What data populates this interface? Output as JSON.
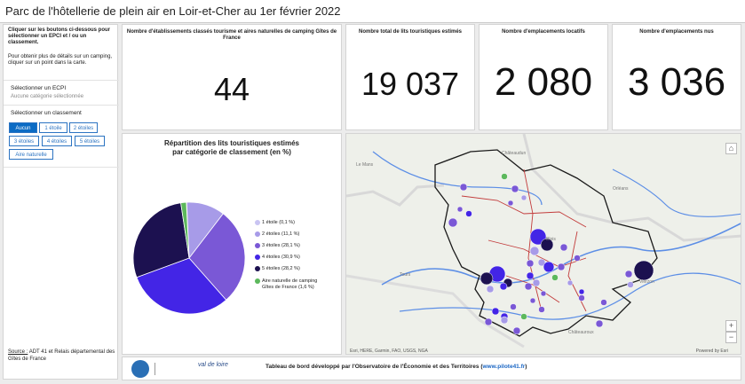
{
  "header": {
    "title": "Parc de l'hôtellerie de plein air en Loir-et-Cher au 1er février 2022"
  },
  "sidebar": {
    "instructions_bold": "Cliquer sur les boutons ci-dessous pour sélectionner un EPCI et / ou un classement.",
    "instructions": "Pour obtenir plus de détails sur un camping, cliquer sur un point dans la carte.",
    "epci_label": "Sélectionner un ECPI",
    "epci_value": "Aucune catégorie sélectionnée",
    "classement_label": "Sélectionner un classement",
    "buttons": [
      "Aucun",
      "1 étoile",
      "2 étoiles",
      "3 étoiles",
      "4 étoiles",
      "5 étoiles",
      "Aire naturelle"
    ],
    "source_label": "Source :",
    "source_text": " ADT 41 et Relais départemental des Gîtes de France"
  },
  "kpis": [
    {
      "title": "Nombre d'établissements classés tourisme et aires naturelles de camping Gîtes de France",
      "value": "44"
    },
    {
      "title": "Nombre total de lits touristiques estimés",
      "value": "19 037"
    },
    {
      "title": "Nombre d'emplacements locatifs",
      "value": "2 080"
    },
    {
      "title": "Nombre d'emplacements nus",
      "value": "3 036"
    }
  ],
  "chart_data": {
    "type": "pie",
    "title": "Répartition des lits touristiques estimés par catégorie de classement (en %)",
    "categories": [
      "1 étoile",
      "2 étoiles",
      "3 étoiles",
      "4 étoiles",
      "5 étoiles",
      "Aire naturelle de camping Gîtes de France"
    ],
    "values": [
      0.1,
      11.1,
      28.1,
      30.9,
      28.2,
      1.6
    ],
    "legend_labels": [
      "1 étoile (0,1 %)",
      "2 étoiles (11,1 %)",
      "3 étoiles (28,1 %)",
      "4 étoiles (30,9 %)",
      "5 étoiles (28,2 %)",
      "Aire naturelle de camping Gîtes de France (1,6 %)"
    ],
    "colors": [
      "#c9c4f2",
      "#a79be8",
      "#7a58d6",
      "#4325e6",
      "#1c1150",
      "#5cb85c"
    ]
  },
  "map": {
    "attribution": "Esri, HERE, Garmin, FAO, USGS, NGA",
    "powered": "Powered by Esri",
    "places": [
      "Le Mans",
      "Châteaudun",
      "Orléans",
      "Blois",
      "Tours",
      "Vierzon",
      "Châteauroux"
    ]
  },
  "footer": {
    "text": "Tableau de bord développé par l'Observatoire de l'Économie et des Territoires (",
    "link": "www.pilote41.fr",
    "text_end": ")"
  }
}
